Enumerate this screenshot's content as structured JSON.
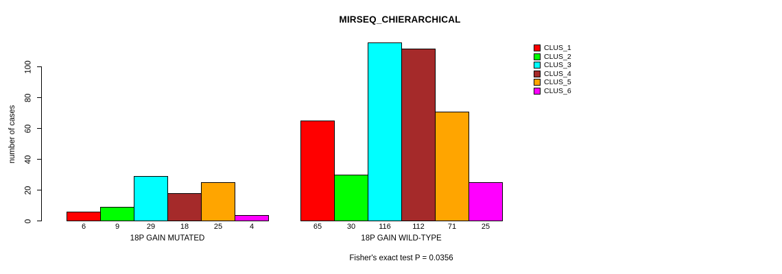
{
  "title": "MIRSEQ_CHIERARCHICAL",
  "y_axis": {
    "label": "number of cases",
    "ticks": [
      0,
      20,
      40,
      60,
      80,
      100
    ]
  },
  "footer": "Fisher's exact test P = 0.0356",
  "chart_data": {
    "type": "bar",
    "title": "MIRSEQ_CHIERARCHICAL",
    "xlabel": "",
    "ylabel": "number of cases",
    "ylim": [
      0,
      120
    ],
    "yticks": [
      0,
      20,
      40,
      60,
      80,
      100
    ],
    "grid": false,
    "legend_position": "right-outside",
    "bar_value_labels": true,
    "categories": [
      "18P GAIN MUTATED",
      "18P GAIN WILD-TYPE"
    ],
    "series": [
      {
        "name": "CLUS_1",
        "color": "#FF0000",
        "values": [
          6,
          65
        ]
      },
      {
        "name": "CLUS_2",
        "color": "#00FF00",
        "values": [
          9,
          30
        ]
      },
      {
        "name": "CLUS_3",
        "color": "#00FFFF",
        "values": [
          29,
          116
        ]
      },
      {
        "name": "CLUS_4",
        "color": "#A52A2A",
        "values": [
          18,
          112
        ]
      },
      {
        "name": "CLUS_5",
        "color": "#FFA500",
        "values": [
          25,
          71
        ]
      },
      {
        "name": "CLUS_6",
        "color": "#FF00FF",
        "values": [
          4,
          25
        ]
      }
    ],
    "annotation": "Fisher's exact test P = 0.0356"
  }
}
